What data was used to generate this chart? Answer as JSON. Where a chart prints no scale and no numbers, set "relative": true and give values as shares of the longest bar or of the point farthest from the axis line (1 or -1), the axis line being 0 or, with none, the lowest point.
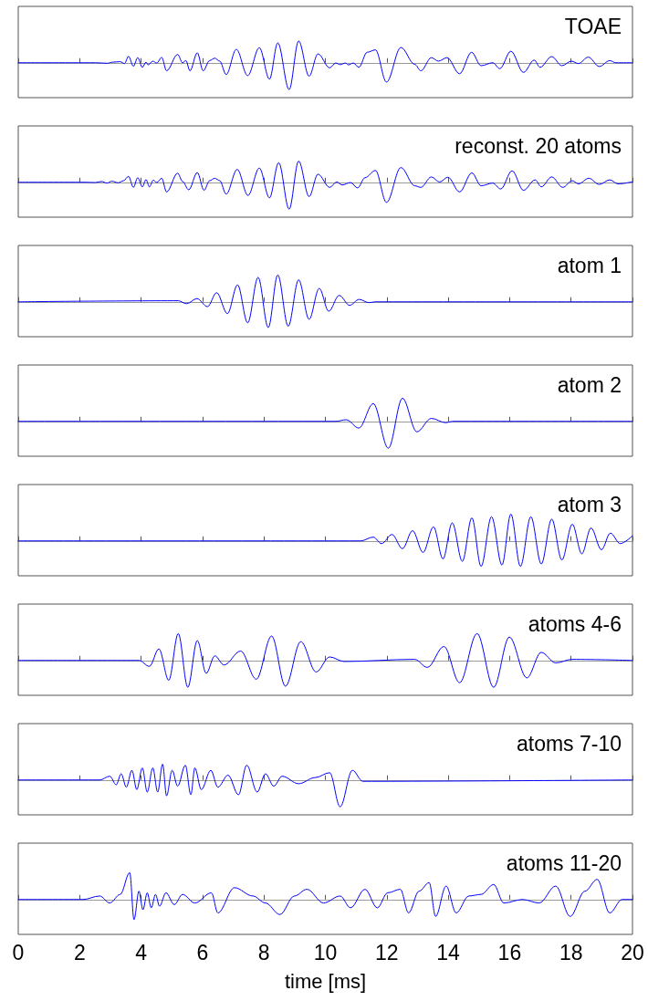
{
  "chart_data": [
    {
      "type": "line",
      "title": "TOAE",
      "relative": true,
      "xlim": [
        0,
        20
      ],
      "xticks": [
        0,
        2,
        4,
        6,
        8,
        10,
        12,
        14,
        16,
        18,
        20
      ],
      "tick_labels": false,
      "color": "#0000ff",
      "x": [
        0,
        2.51,
        2.92,
        3.05,
        3.32,
        3.46,
        3.59,
        3.75,
        3.89,
        4.04,
        4.16,
        4.23,
        4.38,
        4.51,
        4.67,
        4.83,
        5.19,
        5.35,
        5.46,
        5.59,
        5.83,
        6.02,
        6.23,
        6.4,
        6.56,
        6.77,
        7.1,
        7.47,
        7.85,
        8.18,
        8.45,
        8.82,
        9.13,
        9.47,
        9.76,
        10.14,
        10.34,
        10.48,
        10.66,
        10.75,
        10.91,
        11.09,
        11.36,
        11.63,
        11.99,
        12.46,
        12.91,
        13.11,
        13.45,
        13.68,
        13.96,
        14.37,
        14.76,
        15.07,
        15.45,
        15.68,
        16.04,
        16.45,
        16.8,
        16.99,
        17.37,
        17.7,
        18.01,
        18.24,
        18.56,
        18.92,
        19.26,
        19.46,
        20
      ],
      "values": [
        0,
        0,
        -0.02,
        0.02,
        0.04,
        -0.03,
        0.24,
        -0.13,
        0.19,
        -0.17,
        0.02,
        -0.08,
        0.06,
        -0.01,
        0.2,
        -0.3,
        0.31,
        0,
        0.08,
        -0.3,
        0.37,
        -0.3,
        0.08,
        0.17,
        0.06,
        -0.44,
        0.5,
        -0.48,
        0.56,
        -0.61,
        0.74,
        -1,
        0.81,
        -0.5,
        0.33,
        -0.19,
        -0.01,
        -0.07,
        -0.01,
        -0.08,
        -0.01,
        -0.17,
        0.39,
        0.48,
        -0.72,
        0.57,
        -0.06,
        -0.3,
        0.19,
        0.06,
        0.19,
        -0.41,
        0.39,
        -0.11,
        0,
        -0.22,
        0.43,
        -0.36,
        0.1,
        -0.17,
        0.23,
        -0.11,
        0.06,
        -0.03,
        0.21,
        -0.14,
        0.08,
        0,
        0
      ]
    },
    {
      "type": "line",
      "title": "reconst. 20 atoms",
      "relative": true,
      "xlim": [
        0,
        20
      ],
      "xticks": [
        0,
        2,
        4,
        6,
        8,
        10,
        12,
        14,
        16,
        18,
        20
      ],
      "tick_labels": false,
      "color": "#0000ff",
      "x": [
        0,
        2.17,
        2.51,
        2.71,
        2.89,
        3.05,
        3.25,
        3.43,
        3.59,
        3.75,
        3.89,
        4.04,
        4.16,
        4.27,
        4.4,
        4.51,
        4.67,
        4.83,
        5.19,
        5.35,
        5.55,
        5.83,
        6.05,
        6.23,
        6.4,
        6.56,
        6.77,
        7.13,
        7.48,
        7.85,
        8.18,
        8.48,
        8.82,
        9.13,
        9.47,
        9.76,
        10.14,
        10.37,
        10.55,
        10.82,
        11.05,
        11.29,
        11.63,
        11.99,
        12.46,
        12.91,
        13.11,
        13.45,
        13.72,
        13.99,
        14.37,
        14.77,
        15.07,
        15.45,
        15.71,
        16.08,
        16.45,
        16.83,
        17.03,
        17.37,
        17.73,
        18.04,
        18.24,
        18.58,
        18.92,
        19.26,
        19.53,
        20
      ],
      "values": [
        0,
        0,
        -0.01,
        0.03,
        -0.03,
        0.04,
        -0.02,
        0.06,
        0.22,
        -0.19,
        0.17,
        -0.17,
        0.1,
        -0.17,
        0.08,
        -0.01,
        0.15,
        -0.36,
        0.34,
        0.03,
        -0.28,
        0.36,
        -0.3,
        0.06,
        0.15,
        0.06,
        -0.44,
        0.48,
        -0.49,
        0.53,
        -0.58,
        0.73,
        -1,
        0.79,
        -0.53,
        0.3,
        -0.19,
        0.01,
        -0.1,
        -0.01,
        -0.21,
        0.17,
        0.44,
        -0.75,
        0.55,
        -0.13,
        -0.19,
        0.2,
        0.01,
        0.19,
        -0.36,
        0.35,
        -0.13,
        -0.03,
        -0.25,
        0.43,
        -0.3,
        0.09,
        -0.17,
        0.2,
        -0.19,
        0.06,
        -0.06,
        0.15,
        -0.08,
        0.09,
        -0.06,
        0.02
      ]
    },
    {
      "type": "line",
      "title": "atom 1",
      "relative": true,
      "xlim": [
        0,
        20
      ],
      "xticks": [
        0,
        2,
        4,
        6,
        8,
        10,
        12,
        14,
        16,
        18,
        20
      ],
      "tick_labels": false,
      "color": "#0000ff",
      "x": [
        0,
        5.21,
        5.48,
        5.82,
        6.16,
        6.46,
        6.81,
        7.14,
        7.47,
        7.81,
        8.14,
        8.45,
        8.79,
        9.13,
        9.47,
        9.8,
        10.11,
        10.45,
        10.79,
        11.1,
        11.42,
        11.63,
        20
      ],
      "values": [
        0,
        0.04,
        -0.07,
        0.12,
        -0.18,
        0.34,
        -0.44,
        0.63,
        -0.78,
        0.91,
        -0.96,
        1,
        -0.91,
        0.82,
        -0.65,
        0.5,
        -0.35,
        0.24,
        -0.13,
        0.09,
        -0.03,
        0,
        0
      ]
    },
    {
      "type": "line",
      "title": "atom 2",
      "relative": true,
      "xlim": [
        0,
        20
      ],
      "xticks": [
        0,
        2,
        4,
        6,
        8,
        10,
        12,
        14,
        16,
        18,
        20
      ],
      "tick_labels": false,
      "color": "#0000ff",
      "x": [
        0,
        10.34,
        10.68,
        11.09,
        11.56,
        12.05,
        12.51,
        12.98,
        13.45,
        13.92,
        14.13,
        20
      ],
      "values": [
        0,
        0,
        0.06,
        -0.25,
        0.66,
        -1,
        0.86,
        -0.39,
        0.11,
        -0.05,
        0,
        0
      ]
    },
    {
      "type": "line",
      "title": "atom 3",
      "relative": true,
      "xlim": [
        0,
        20
      ],
      "xticks": [
        0,
        2,
        4,
        6,
        8,
        10,
        12,
        14,
        16,
        18,
        20
      ],
      "tick_labels": false,
      "color": "#0000ff",
      "x": [
        0,
        11.15,
        11.56,
        11.83,
        12.17,
        12.51,
        12.84,
        13.18,
        13.52,
        13.83,
        14.13,
        14.46,
        14.77,
        15.07,
        15.41,
        15.75,
        16.04,
        16.35,
        16.69,
        17.03,
        17.37,
        17.7,
        18.04,
        18.35,
        18.65,
        18.99,
        19.28,
        19.6,
        20
      ],
      "values": [
        0,
        0,
        0.14,
        -0.1,
        0.24,
        -0.29,
        0.38,
        -0.43,
        0.52,
        -0.67,
        0.67,
        -0.76,
        0.86,
        -0.95,
        0.9,
        -0.9,
        1,
        -0.95,
        0.9,
        -0.86,
        0.81,
        -0.71,
        0.62,
        -0.48,
        0.48,
        -0.33,
        0.29,
        -0.1,
        0.19
      ]
    },
    {
      "type": "line",
      "title": "atoms 4-6",
      "relative": true,
      "xlim": [
        0,
        20
      ],
      "xticks": [
        0,
        2,
        4,
        6,
        8,
        10,
        12,
        14,
        16,
        18,
        20
      ],
      "tick_labels": false,
      "color": "#0000ff",
      "x": [
        0,
        3.93,
        4.27,
        4.58,
        4.9,
        5.21,
        5.52,
        5.83,
        6.12,
        6.4,
        6.7,
        7.24,
        7.75,
        8.25,
        8.7,
        9.2,
        9.7,
        10.14,
        10.61,
        12.91,
        13.32,
        13.86,
        14.37,
        14.94,
        15.48,
        15.99,
        16.56,
        17.03,
        17.5,
        18.04,
        20
      ],
      "values": [
        0,
        0,
        -0.22,
        0.43,
        -0.74,
        1,
        -1,
        0.74,
        -0.48,
        0.17,
        -0.17,
        0.35,
        -0.7,
        0.91,
        -0.96,
        0.7,
        -0.43,
        0.13,
        -0.04,
        0.04,
        -0.26,
        0.52,
        -0.83,
        1,
        -1,
        0.87,
        -0.65,
        0.3,
        -0.09,
        0.04,
        0
      ]
    },
    {
      "type": "line",
      "title": "atoms 7-10",
      "relative": true,
      "xlim": [
        0,
        20
      ],
      "xticks": [
        0,
        2,
        4,
        6,
        8,
        10,
        12,
        14,
        16,
        18,
        20
      ],
      "tick_labels": false,
      "color": "#0000ff",
      "x": [
        0,
        2.65,
        2.98,
        3.19,
        3.35,
        3.52,
        3.7,
        3.86,
        4.04,
        4.2,
        4.38,
        4.54,
        4.7,
        4.83,
        5.01,
        5.19,
        5.44,
        5.62,
        5.75,
        5.96,
        6.27,
        6.5,
        6.83,
        7.17,
        7.44,
        7.78,
        8.05,
        8.32,
        8.59,
        9.13,
        9.67,
        10.14,
        10.48,
        10.88,
        11.22,
        20
      ],
      "values": [
        0,
        0,
        0.14,
        -0.18,
        0.23,
        -0.27,
        0.36,
        -0.36,
        0.45,
        -0.45,
        0.45,
        -0.45,
        0.59,
        -0.59,
        0.36,
        -0.23,
        0.55,
        -0.55,
        0.45,
        -0.36,
        0.36,
        -0.27,
        0.18,
        -0.55,
        0.55,
        -0.45,
        0.23,
        -0.23,
        0.14,
        -0.14,
        0.09,
        0.27,
        -1,
        0.36,
        -0.05,
        0
      ]
    },
    {
      "type": "line",
      "title": "atoms 11-20",
      "xlabel": "time [ms]",
      "relative": true,
      "xlim": [
        0,
        20
      ],
      "xticks": [
        0,
        2,
        4,
        6,
        8,
        10,
        12,
        14,
        16,
        18,
        20
      ],
      "tick_labels": "x",
      "color": "#0000ff",
      "x": [
        0,
        2.11,
        2.65,
        2.98,
        3.32,
        3.63,
        3.77,
        3.93,
        4.06,
        4.2,
        4.33,
        4.47,
        4.6,
        4.81,
        5.08,
        5.35,
        5.75,
        6.29,
        6.5,
        7.04,
        7.64,
        8.05,
        8.52,
        8.99,
        9.4,
        9.94,
        10.48,
        10.82,
        11.29,
        11.69,
        12.03,
        12.44,
        12.71,
        13.05,
        13.38,
        13.59,
        13.93,
        14.26,
        14.67,
        15.07,
        15.48,
        15.81,
        16.42,
        16.96,
        17.5,
        17.97,
        18.45,
        18.85,
        19.26,
        19.66,
        20
      ],
      "values": [
        0,
        0,
        0.13,
        -0.13,
        0.19,
        1,
        -0.75,
        0.31,
        -0.38,
        0.25,
        -0.31,
        0.19,
        -0.25,
        0.25,
        -0.19,
        0.19,
        -0.13,
        0.25,
        -0.5,
        0.44,
        0.13,
        -0.13,
        -0.56,
        0.13,
        0.38,
        -0.13,
        0.13,
        -0.31,
        0.38,
        -0.31,
        0.25,
        0.38,
        -0.5,
        0.31,
        0.63,
        -0.63,
        0.5,
        -0.5,
        0.13,
        0.19,
        0.56,
        -0.13,
        0,
        -0.13,
        0.5,
        -0.63,
        0.31,
        0.75,
        -0.5,
        0,
        0
      ]
    }
  ]
}
